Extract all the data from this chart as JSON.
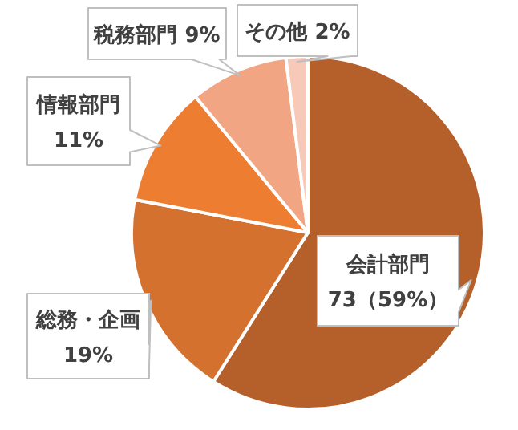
{
  "chart_data": {
    "type": "pie",
    "categories": [
      "会計部門",
      "総務・企画",
      "情報部門",
      "税務部門",
      "その他"
    ],
    "values": [
      59,
      19,
      11,
      9,
      2
    ],
    "value_labels": [
      "73（59%）",
      "19%",
      "11%",
      "9%",
      "2%"
    ],
    "colors": [
      "#b5602a",
      "#d4712e",
      "#ed7d31",
      "#f1a583",
      "#f7c9b8"
    ]
  }
}
